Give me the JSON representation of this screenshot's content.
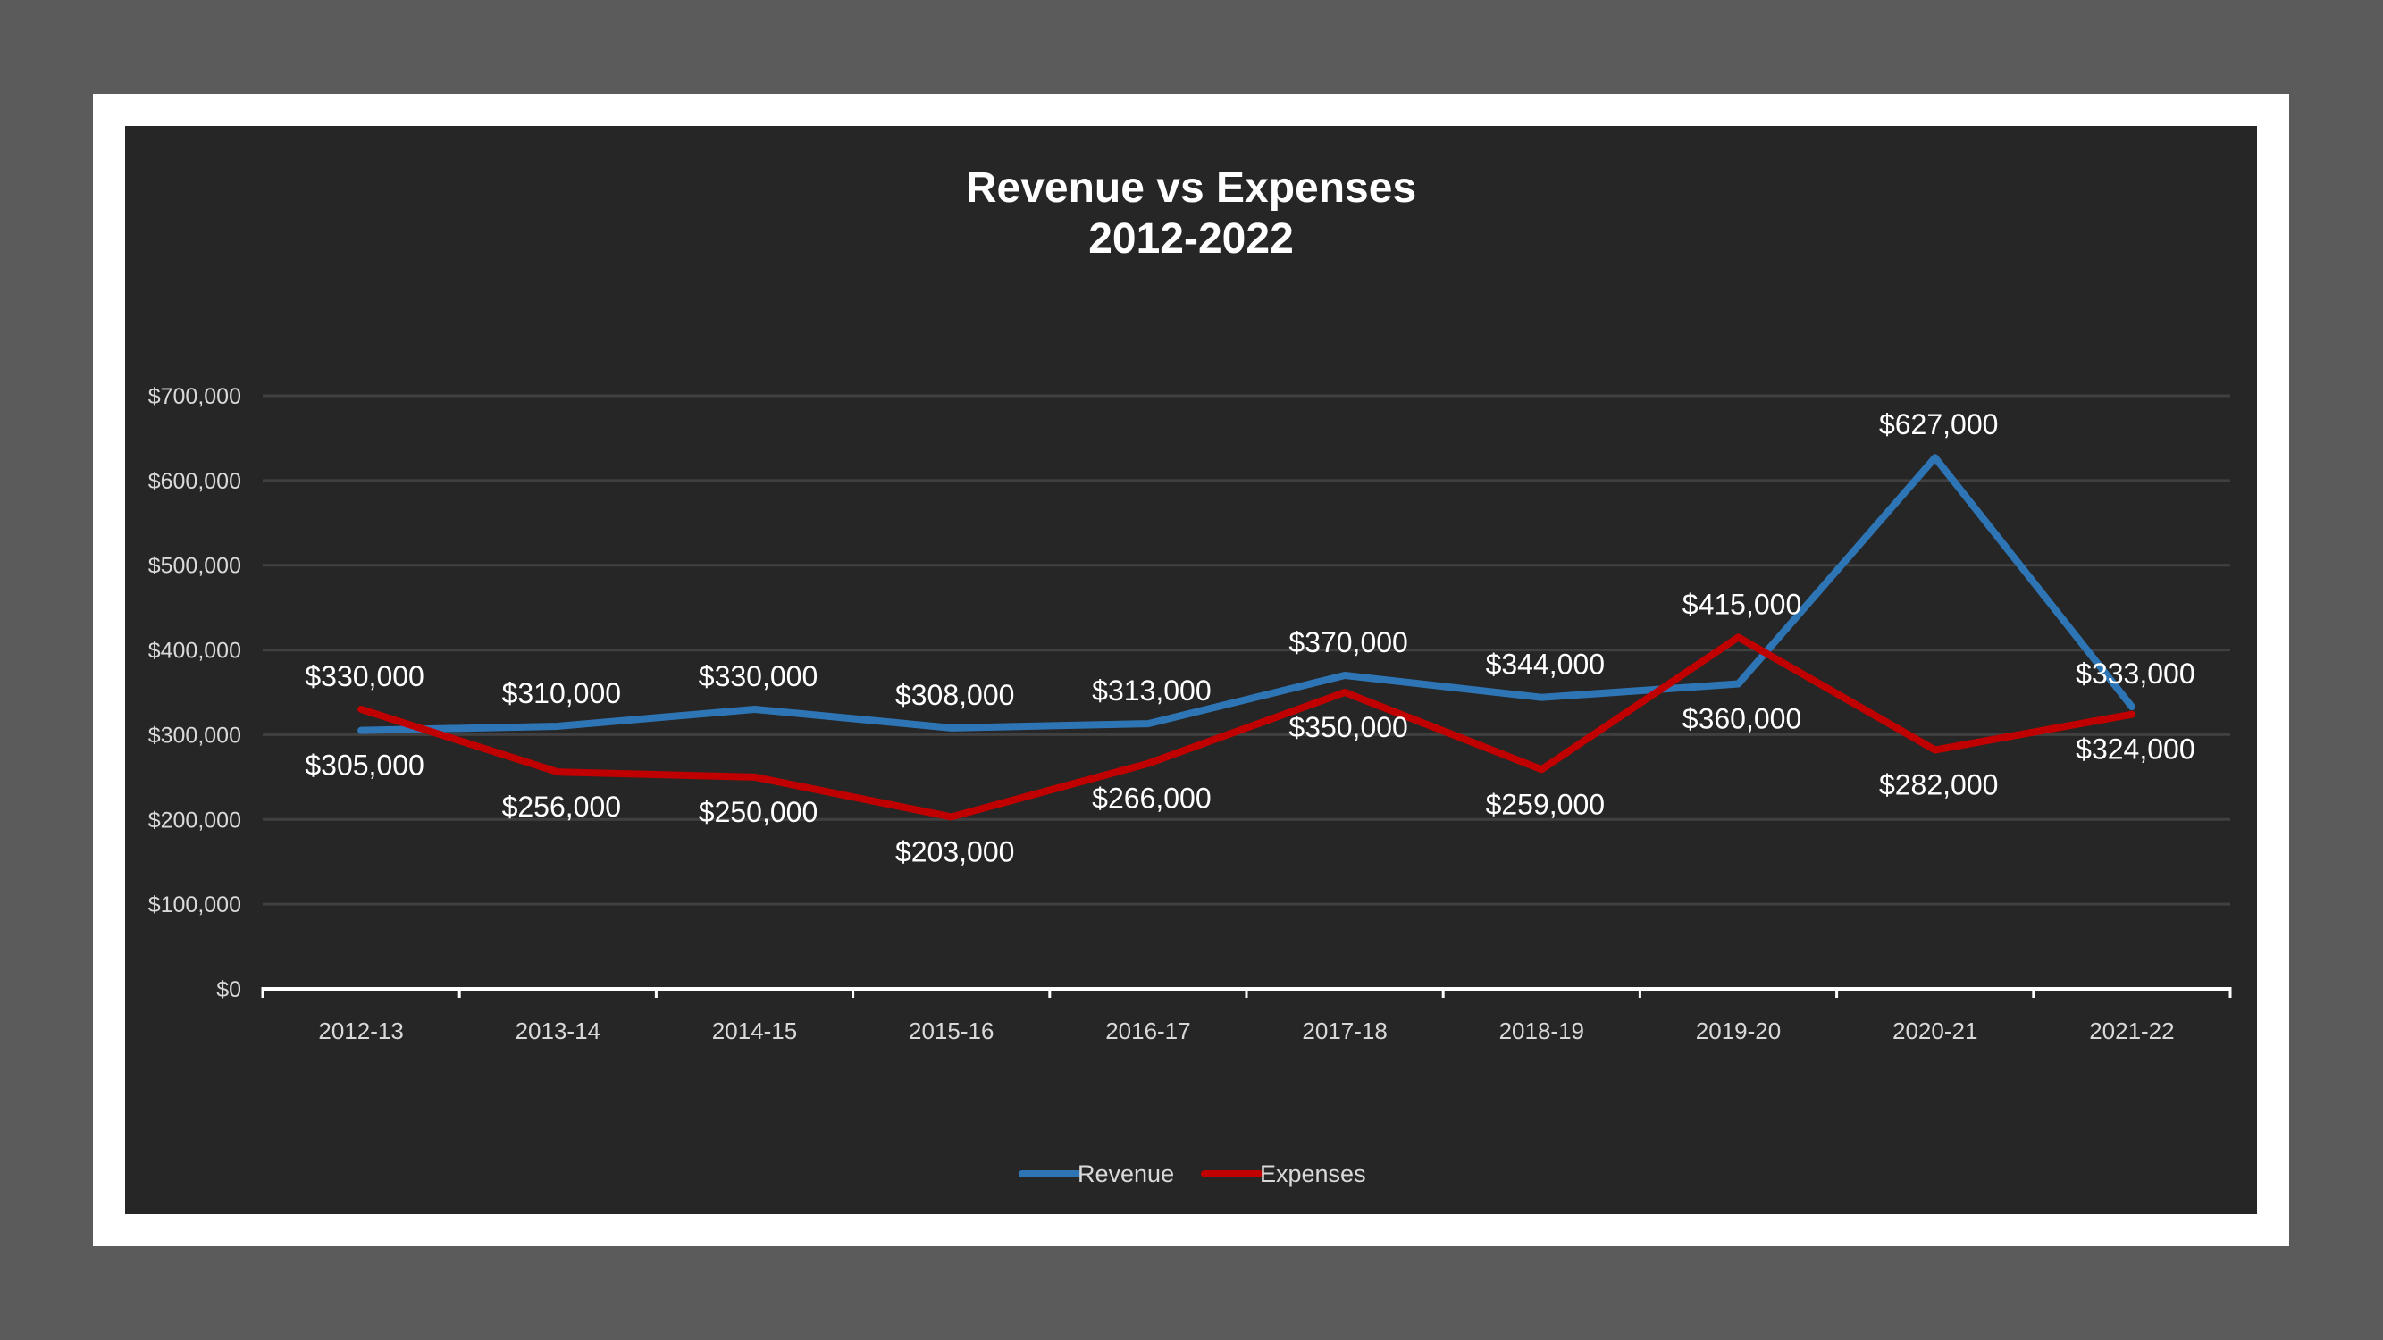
{
  "chart_data": {
    "type": "line",
    "title": "Revenue vs Expenses",
    "subtitle": "2012-2022",
    "categories": [
      "2012-13",
      "2013-14",
      "2014-15",
      "2015-16",
      "2016-17",
      "2017-18",
      "2018-19",
      "2019-20",
      "2020-21",
      "2021-22"
    ],
    "series": [
      {
        "name": "Revenue",
        "color": "#2e75b6",
        "values": [
          305000,
          310000,
          330000,
          308000,
          313000,
          370000,
          344000,
          360000,
          627000,
          333000
        ],
        "labels": [
          "$305,000",
          "$310,000",
          "$330,000",
          "$308,000",
          "$313,000",
          "$370,000",
          "$344,000",
          "$360,000",
          "$627,000",
          "$333,000"
        ],
        "label_pos": [
          "below",
          "above",
          "above",
          "above",
          "above",
          "above",
          "above",
          "below",
          "above",
          "above"
        ]
      },
      {
        "name": "Expenses",
        "color": "#c00000",
        "values": [
          330000,
          256000,
          250000,
          203000,
          266000,
          350000,
          259000,
          415000,
          282000,
          324000
        ],
        "labels": [
          "$330,000",
          "$256,000",
          "$250,000",
          "$203,000",
          "$266,000",
          "$350,000",
          "$259,000",
          "$415,000",
          "$282,000",
          "$324,000"
        ],
        "label_pos": [
          "above",
          "below",
          "below",
          "below",
          "below",
          "below",
          "below",
          "above",
          "below",
          "below"
        ]
      }
    ],
    "ylim": [
      0,
      700000
    ],
    "yticks": [
      0,
      100000,
      200000,
      300000,
      400000,
      500000,
      600000,
      700000
    ],
    "ytick_labels": [
      "$0",
      "$100,000",
      "$200,000",
      "$300,000",
      "$400,000",
      "$500,000",
      "$600,000",
      "$700,000"
    ],
    "xlabel": "",
    "ylabel": "",
    "grid": true,
    "legend": "bottom-center",
    "colors": {
      "background": "#262626",
      "frame": "#ffffff",
      "outer": "#5b5b5b",
      "gridline": "#404040",
      "text": "#d9d9d9"
    }
  }
}
